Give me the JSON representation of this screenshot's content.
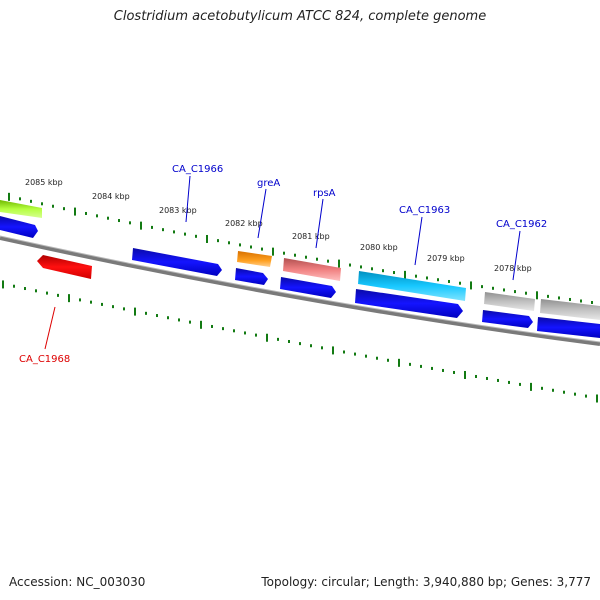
{
  "title": "Clostridium acetobutylicum ATCC 824, complete genome",
  "footer": {
    "accession": "Accession: NC_003030",
    "summary": "Topology: circular; Length: 3,940,880 bp; Genes: 3,777"
  },
  "ticks": [
    "2085 kbp",
    "2084 kbp",
    "2083 kbp",
    "2082 kbp",
    "2081 kbp",
    "2080 kbp",
    "2079 kbp",
    "2078 kbp"
  ],
  "genes": [
    {
      "name": "CA_C1966",
      "color": "#0000cc"
    },
    {
      "name": "greA",
      "color": "#0000cc"
    },
    {
      "name": "rpsA",
      "color": "#0000cc"
    },
    {
      "name": "CA_C1963",
      "color": "#0000cc"
    },
    {
      "name": "CA_C1962",
      "color": "#0000cc"
    },
    {
      "name": "CA_C1968",
      "color": "#dd0000"
    }
  ]
}
